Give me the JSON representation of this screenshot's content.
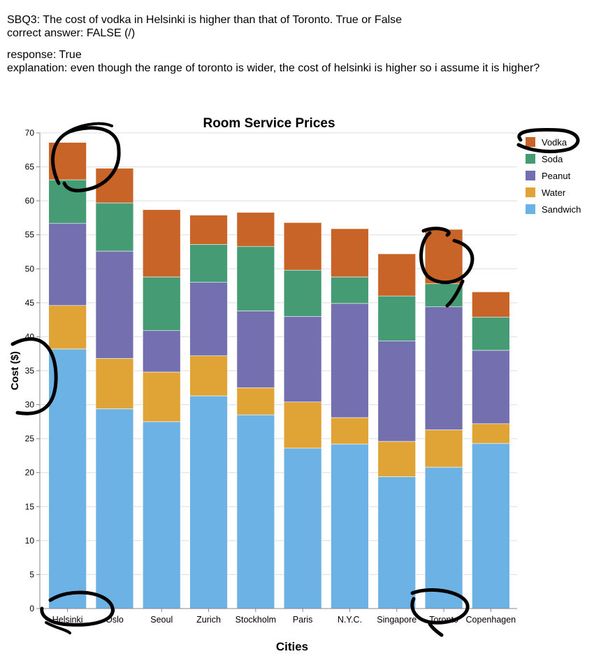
{
  "header": {
    "question": "SBQ3: The cost of vodka in Helsinki is higher than that of Toronto. True or False",
    "correct_answer": "correct answer: FALSE (/)",
    "response": "response: True",
    "explanation": "explanation: even though the range of toronto is wider, the cost of helsinki is higher so i assume it is higher?"
  },
  "chart_data": {
    "type": "bar",
    "stacked": true,
    "title": "Room Service Prices",
    "xlabel": "Cities",
    "ylabel": "Cost ($)",
    "ylim": [
      0,
      70
    ],
    "yticks": [
      0,
      5,
      10,
      15,
      20,
      25,
      30,
      35,
      40,
      45,
      50,
      55,
      60,
      65,
      70
    ],
    "grid": true,
    "legend_position": "top-right",
    "categories": [
      "Helsinki",
      "Oslo",
      "Seoul",
      "Zurich",
      "Stockholm",
      "Paris",
      "N.Y.C.",
      "Singapore",
      "Toronto",
      "Copenhagen"
    ],
    "series": [
      {
        "name": "Sandwich",
        "color": "#6cb2e4",
        "values": [
          38.2,
          29.4,
          27.5,
          31.3,
          28.5,
          23.6,
          24.2,
          19.4,
          20.8,
          24.3
        ]
      },
      {
        "name": "Water",
        "color": "#e0a336",
        "values": [
          6.4,
          7.4,
          7.3,
          5.9,
          4.0,
          6.8,
          3.9,
          5.2,
          5.5,
          2.9
        ]
      },
      {
        "name": "Peanut",
        "color": "#7470b0",
        "values": [
          12.1,
          15.8,
          6.1,
          10.8,
          11.3,
          12.6,
          16.8,
          14.8,
          18.1,
          10.8
        ]
      },
      {
        "name": "Soda",
        "color": "#459c74",
        "values": [
          6.4,
          7.1,
          7.9,
          5.6,
          9.5,
          6.8,
          3.9,
          6.6,
          3.4,
          4.9
        ]
      },
      {
        "name": "Vodka",
        "color": "#c96428",
        "values": [
          5.5,
          5.1,
          9.9,
          4.3,
          5.0,
          7.0,
          7.1,
          6.2,
          8.0,
          3.7
        ]
      }
    ],
    "legend_order": [
      "Vodka",
      "Soda",
      "Peanut",
      "Water",
      "Sandwich"
    ]
  },
  "annotation_color": "#000000"
}
